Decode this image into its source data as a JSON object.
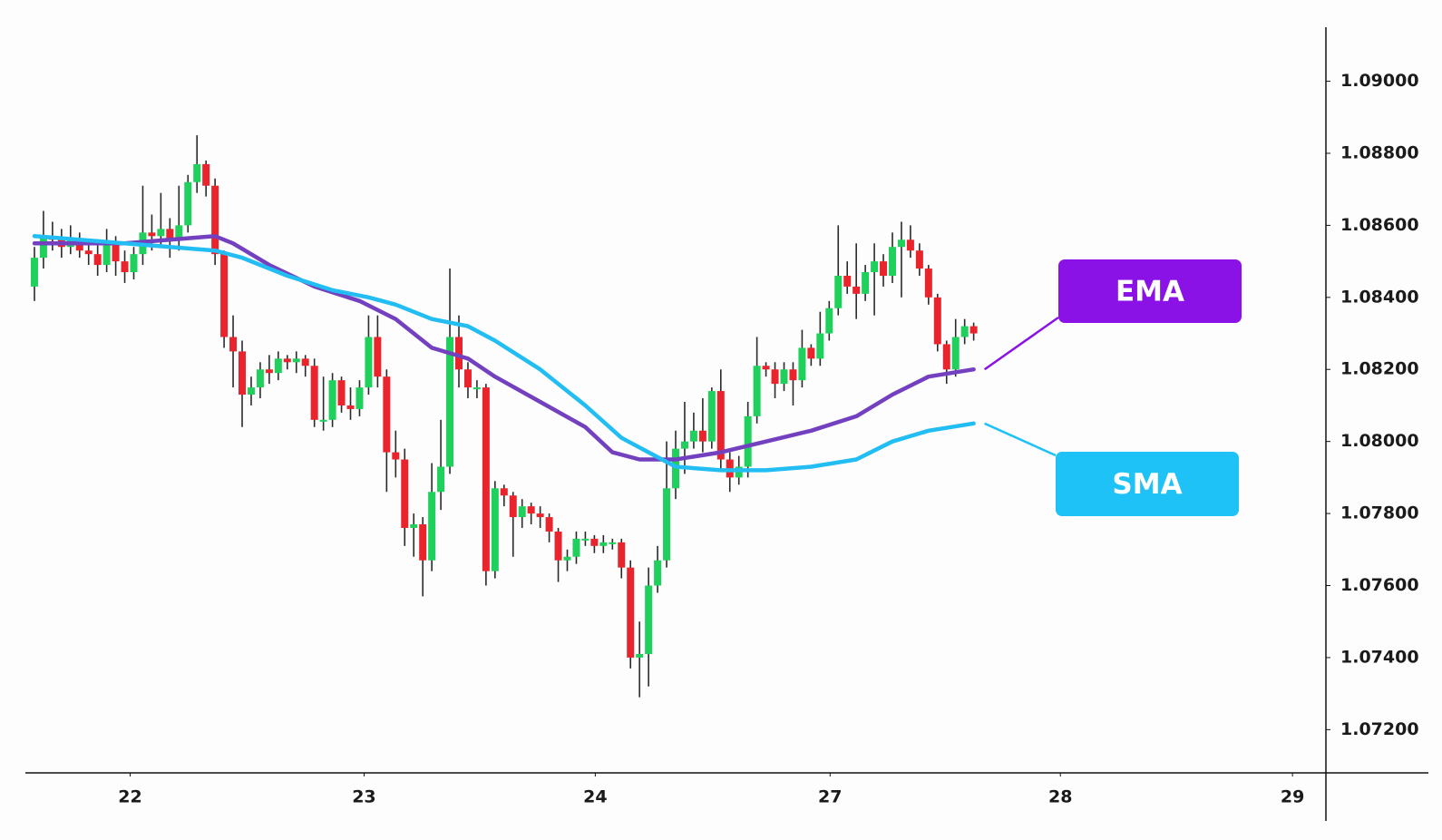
{
  "chart_data": {
    "type": "candlestick",
    "up_color": "#1fd15c",
    "down_color": "#e9242d",
    "x": [
      1,
      2,
      3,
      4,
      5,
      6,
      7,
      8,
      9,
      10,
      11,
      12,
      13,
      14,
      15,
      16,
      17,
      18,
      19,
      20,
      21,
      22,
      23,
      24,
      25,
      26,
      27,
      28,
      29,
      30,
      31,
      32,
      33,
      34,
      35,
      36,
      37,
      38,
      39,
      40,
      41,
      42,
      43,
      44,
      45,
      46,
      47,
      48,
      49,
      50,
      51,
      52,
      53,
      54,
      55,
      56,
      57,
      58,
      59,
      60,
      61,
      62,
      63,
      64,
      65,
      66,
      67,
      68,
      69,
      70,
      71,
      72,
      73,
      74,
      75,
      76,
      77,
      78,
      79,
      80,
      81,
      82,
      83,
      84,
      85,
      86,
      87,
      88,
      89,
      90,
      91,
      92,
      93,
      94,
      95,
      96,
      97,
      98,
      99,
      100,
      101,
      102,
      103,
      104,
      105
    ],
    "open": [
      1.0843,
      1.0851,
      1.0857,
      1.0856,
      1.0854,
      1.0856,
      1.0853,
      1.0852,
      1.0849,
      1.0855,
      1.085,
      1.0847,
      1.0852,
      1.0858,
      1.0857,
      1.0859,
      1.0856,
      1.086,
      1.0872,
      1.0877,
      1.0871,
      1.0852,
      1.0829,
      1.0825,
      1.0813,
      1.0815,
      1.082,
      1.0819,
      1.0823,
      1.0822,
      1.0823,
      1.0821,
      1.0806,
      1.0806,
      1.0817,
      1.081,
      1.0809,
      1.0815,
      1.0829,
      1.0818,
      1.0797,
      1.0795,
      1.0776,
      1.0777,
      1.0767,
      1.0786,
      1.0793,
      1.0829,
      1.082,
      1.0815,
      1.0815,
      1.0764,
      1.0787,
      1.0785,
      1.0779,
      1.0782,
      1.078,
      1.0779,
      1.0775,
      1.0767,
      1.0768,
      1.0773,
      1.0773,
      1.0771,
      1.0772,
      1.0772,
      1.0765,
      1.074,
      1.0741,
      1.076,
      1.0767,
      1.0787,
      1.0798,
      1.08,
      1.0803,
      1.08,
      1.0814,
      1.0795,
      1.079,
      1.0793,
      1.0807,
      1.0821,
      1.082,
      1.0816,
      1.082,
      1.0817,
      1.0826,
      1.0823,
      1.083,
      1.0837,
      1.0846,
      1.0843,
      1.0841,
      1.0847,
      1.085,
      1.0846,
      1.0854,
      1.0856,
      1.0853,
      1.0848,
      1.084,
      1.0827,
      1.082,
      1.0829,
      1.0832
    ],
    "high": [
      1.0854,
      1.0864,
      1.0861,
      1.0859,
      1.086,
      1.0858,
      1.0856,
      1.0855,
      1.0859,
      1.0857,
      1.0853,
      1.0854,
      1.0871,
      1.0863,
      1.0869,
      1.0862,
      1.0871,
      1.0874,
      1.0885,
      1.0878,
      1.0873,
      1.0853,
      1.0835,
      1.0828,
      1.0818,
      1.0822,
      1.0824,
      1.0825,
      1.0824,
      1.0825,
      1.0824,
      1.0823,
      1.0818,
      1.0819,
      1.0818,
      1.0815,
      1.0817,
      1.0835,
      1.0835,
      1.082,
      1.0803,
      1.0798,
      1.078,
      1.0779,
      1.0794,
      1.0806,
      1.0848,
      1.0835,
      1.0822,
      1.0817,
      1.0816,
      1.0789,
      1.0788,
      1.0786,
      1.0784,
      1.0783,
      1.0782,
      1.078,
      1.0776,
      1.077,
      1.0775,
      1.0775,
      1.0774,
      1.0774,
      1.0773,
      1.0773,
      1.0767,
      1.075,
      1.0765,
      1.0771,
      1.08,
      1.0803,
      1.0811,
      1.0808,
      1.0812,
      1.0815,
      1.082,
      1.0797,
      1.0796,
      1.0811,
      1.0829,
      1.0822,
      1.0822,
      1.0822,
      1.0822,
      1.0831,
      1.0827,
      1.0836,
      1.0839,
      1.086,
      1.085,
      1.0855,
      1.0849,
      1.0855,
      1.0852,
      1.0858,
      1.0861,
      1.086,
      1.0855,
      1.0849,
      1.0841,
      1.0828,
      1.0834,
      1.0834,
      1.0833
    ],
    "low": [
      1.0839,
      1.0848,
      1.0853,
      1.0851,
      1.0852,
      1.0851,
      1.0849,
      1.0846,
      1.0847,
      1.0846,
      1.0844,
      1.0845,
      1.0849,
      1.0853,
      1.0854,
      1.0851,
      1.0853,
      1.0858,
      1.0869,
      1.0868,
      1.0849,
      1.0826,
      1.0815,
      1.0804,
      1.081,
      1.0812,
      1.0816,
      1.0817,
      1.082,
      1.0819,
      1.0818,
      1.0804,
      1.0803,
      1.0804,
      1.0808,
      1.0806,
      1.0807,
      1.0813,
      1.0815,
      1.0786,
      1.079,
      1.0771,
      1.0768,
      1.0757,
      1.0764,
      1.0781,
      1.0791,
      1.0815,
      1.0812,
      1.0812,
      1.076,
      1.0762,
      1.0782,
      1.0768,
      1.0776,
      1.0777,
      1.0776,
      1.0772,
      1.0761,
      1.0764,
      1.0766,
      1.0771,
      1.0769,
      1.0769,
      1.077,
      1.0762,
      1.0737,
      1.0729,
      1.0732,
      1.0758,
      1.0765,
      1.0784,
      1.0791,
      1.0798,
      1.0797,
      1.0798,
      1.0792,
      1.0786,
      1.0788,
      1.079,
      1.0805,
      1.0818,
      1.0812,
      1.0814,
      1.081,
      1.0815,
      1.0821,
      1.0821,
      1.0828,
      1.0835,
      1.0841,
      1.0834,
      1.0839,
      1.0835,
      1.0843,
      1.0844,
      1.084,
      1.0851,
      1.0846,
      1.0838,
      1.0825,
      1.0816,
      1.0818,
      1.0827,
      1.0828
    ],
    "close": [
      1.0851,
      1.0857,
      1.0856,
      1.0854,
      1.0856,
      1.0853,
      1.0852,
      1.0849,
      1.0855,
      1.085,
      1.0847,
      1.0852,
      1.0858,
      1.0857,
      1.0859,
      1.0856,
      1.086,
      1.0872,
      1.0877,
      1.0871,
      1.0852,
      1.0829,
      1.0825,
      1.0813,
      1.0815,
      1.082,
      1.0819,
      1.0823,
      1.0822,
      1.0823,
      1.0821,
      1.0806,
      1.0806,
      1.0817,
      1.081,
      1.0809,
      1.0815,
      1.0829,
      1.0818,
      1.0797,
      1.0795,
      1.0776,
      1.0777,
      1.0767,
      1.0786,
      1.0793,
      1.0829,
      1.082,
      1.0815,
      1.0815,
      1.0764,
      1.0787,
      1.0785,
      1.0779,
      1.0782,
      1.078,
      1.0779,
      1.0775,
      1.0767,
      1.0768,
      1.0773,
      1.0773,
      1.0771,
      1.0772,
      1.0772,
      1.0765,
      1.074,
      1.0741,
      1.076,
      1.0767,
      1.0787,
      1.0798,
      1.08,
      1.0803,
      1.08,
      1.0814,
      1.0795,
      1.079,
      1.0793,
      1.0807,
      1.0821,
      1.082,
      1.0816,
      1.082,
      1.0817,
      1.0826,
      1.0823,
      1.083,
      1.0837,
      1.0846,
      1.0843,
      1.0841,
      1.0847,
      1.085,
      1.0846,
      1.0854,
      1.0856,
      1.0853,
      1.0848,
      1.084,
      1.0827,
      1.082,
      1.0829,
      1.0832,
      1.083
    ],
    "series": [
      {
        "name": "EMA",
        "color": "#7340c0",
        "label_color": "#8b12e6",
        "x": [
          1,
          6,
          11,
          16,
          21,
          23,
          27,
          32,
          37,
          41,
          45,
          49,
          52,
          57,
          62,
          65,
          68,
          72,
          77,
          82,
          87,
          92,
          96,
          100,
          105
        ],
        "values": [
          1.0855,
          1.0855,
          1.0855,
          1.0856,
          1.0857,
          1.0855,
          1.0849,
          1.0843,
          1.0839,
          1.0834,
          1.0826,
          1.0823,
          1.0818,
          1.0811,
          1.0804,
          1.0797,
          1.0795,
          1.0795,
          1.0797,
          1.08,
          1.0803,
          1.0807,
          1.0813,
          1.0818,
          1.082
        ]
      },
      {
        "name": "SMA",
        "color": "#22bdf2",
        "label_color": "#1ec2f6",
        "x": [
          1,
          6,
          11,
          16,
          21,
          24,
          29,
          34,
          38,
          41,
          45,
          49,
          52,
          57,
          62,
          66,
          69,
          72,
          77,
          82,
          87,
          92,
          96,
          100,
          105
        ],
        "values": [
          1.0857,
          1.0856,
          1.0855,
          1.0854,
          1.0853,
          1.0851,
          1.0846,
          1.0842,
          1.084,
          1.0838,
          1.0834,
          1.0832,
          1.0828,
          1.082,
          1.081,
          1.0801,
          1.0797,
          1.0793,
          1.0792,
          1.0792,
          1.0793,
          1.0795,
          1.08,
          1.0803,
          1.0805
        ]
      }
    ],
    "xlim": [
      0,
      144
    ],
    "xticks": [
      {
        "value": 11.6,
        "label": "22"
      },
      {
        "value": 37.5,
        "label": "23"
      },
      {
        "value": 63.1,
        "label": "24"
      },
      {
        "value": 89.1,
        "label": "27"
      },
      {
        "value": 114.6,
        "label": "28"
      },
      {
        "value": 140.3,
        "label": "29"
      }
    ],
    "ylim": [
      1.0708,
      1.0915
    ],
    "yticks": [
      {
        "value": 1.072,
        "label": "1.07200"
      },
      {
        "value": 1.074,
        "label": "1.07400"
      },
      {
        "value": 1.076,
        "label": "1.07600"
      },
      {
        "value": 1.078,
        "label": "1.07800"
      },
      {
        "value": 1.08,
        "label": "1.08000"
      },
      {
        "value": 1.082,
        "label": "1.08200"
      },
      {
        "value": 1.084,
        "label": "1.08400"
      },
      {
        "value": 1.086,
        "label": "1.08600"
      },
      {
        "value": 1.088,
        "label": "1.08800"
      },
      {
        "value": 1.09,
        "label": "1.09000"
      }
    ]
  }
}
